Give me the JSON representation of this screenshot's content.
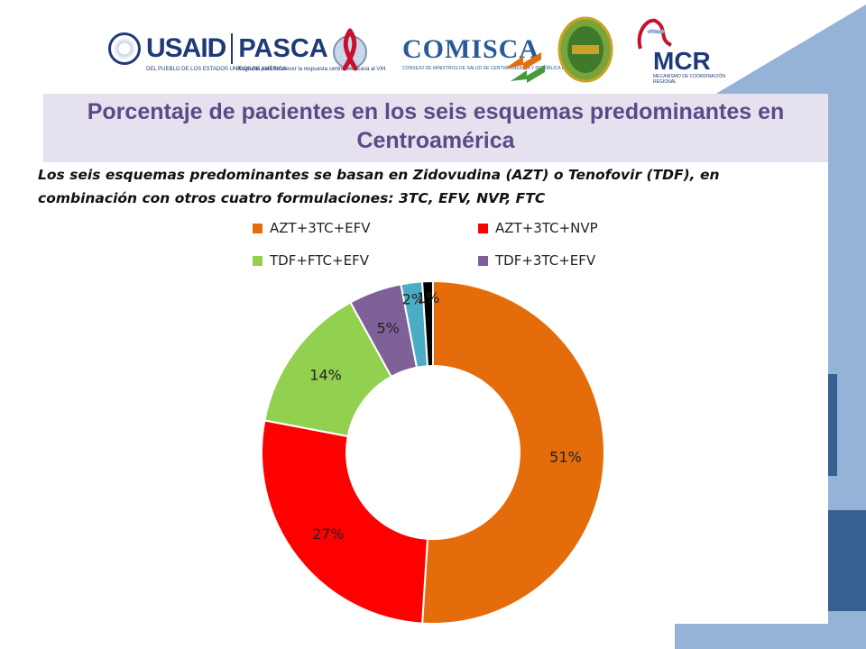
{
  "logos": {
    "usaid": {
      "name": "USAID",
      "divider": "|",
      "partner": "PASCA",
      "tagline": "DEL PUEBLO DE LOS ESTADOS UNIDOS DE AMÉRICA",
      "partner_tagline": "Programa para fortalecer la respuesta centroamericana al VIH"
    },
    "comisca": {
      "name": "COMISCA",
      "tagline": "CONSEJO DE MINISTROS DE SALUD DE CENTROAMÉRICA Y REPÚBLICA DOMINICANA"
    },
    "mcr": {
      "name": "MCR",
      "tagline": "MECANISMO DE COORDINACIÓN REGIONAL"
    }
  },
  "slide": {
    "title": "Porcentaje de pacientes en los seis esquemas predominantes en Centroamérica",
    "subtitle": "Los seis esquemas predominantes se basan en Zidovudina (AZT) o Tenofovir (TDF), en combinación con otros cuatro formulaciones: 3TC, EFV, NVP, FTC"
  },
  "colors": {
    "accent_light_blue": "#95b3d7",
    "accent_dark_blue": "#366092",
    "title_bg": "#e6e1ee",
    "title_text": "#5b4a86"
  },
  "chart_data": {
    "type": "pie",
    "donut": true,
    "legend_position": "top",
    "categories": [
      "AZT+3TC+EFV",
      "AZT+3TC+NVP",
      "TDF+FTC+EFV",
      "TDF+3TC+EFV",
      "",
      ""
    ],
    "values": [
      51,
      27,
      14,
      5,
      2,
      1
    ],
    "labels": [
      "51%",
      "27%",
      "14%",
      "5%",
      "2%",
      "1%"
    ],
    "colors": [
      "#e46c0a",
      "#ff0000",
      "#92d050",
      "#7f6098",
      "#4bacc6",
      "#000000"
    ]
  }
}
